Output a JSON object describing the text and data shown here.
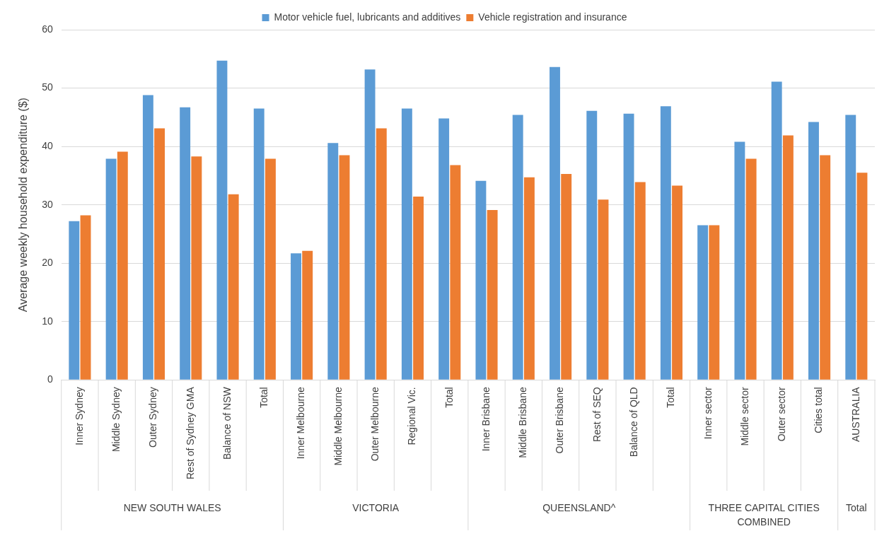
{
  "chart_data": {
    "type": "bar",
    "ylabel": "Average weekly household expenditure ($)",
    "categories": [
      "Inner Sydney",
      "Middle Sydney",
      "Outer Sydney",
      "Rest of Sydney GMA",
      "Balance of NSW",
      "Total",
      "Inner Melbourne",
      "Middle Melbourne",
      "Outer Melbourne",
      "Regional Vic.",
      "Total",
      "Inner Brisbane",
      "Middle Brisbane",
      "Outer Brisbane",
      "Rest of SEQ",
      "Balance of QLD",
      "Total",
      "Inner sector",
      "Middle sector",
      "Outer sector",
      "Cities total",
      "AUSTRALIA"
    ],
    "series": [
      {
        "name": "Motor vehicle fuel, lubricants and additives",
        "color": "#5b9bd5",
        "values": [
          27.2,
          37.9,
          48.8,
          46.7,
          54.7,
          46.5,
          21.7,
          40.6,
          53.2,
          46.5,
          44.8,
          34.1,
          45.4,
          53.6,
          46.1,
          45.6,
          46.9,
          26.5,
          40.8,
          51.1,
          44.2,
          45.4
        ]
      },
      {
        "name": "Vehicle registration and insurance",
        "color": "#ed7d31",
        "values": [
          28.2,
          39.1,
          43.1,
          38.3,
          31.8,
          37.9,
          22.1,
          38.5,
          43.1,
          31.4,
          36.8,
          29.1,
          34.7,
          35.3,
          30.9,
          33.9,
          33.3,
          26.5,
          37.9,
          41.9,
          38.5,
          35.5
        ]
      }
    ],
    "ylim": [
      0,
      60
    ],
    "yticks": [
      0,
      10,
      20,
      30,
      40,
      50,
      60
    ],
    "grid": "y",
    "legend": "top",
    "annotations": [
      "NEW SOUTH WALES",
      "VICTORIA",
      "QUEENSLAND^",
      "THREE CAPITAL CITIES COMBINED",
      "Total"
    ]
  }
}
